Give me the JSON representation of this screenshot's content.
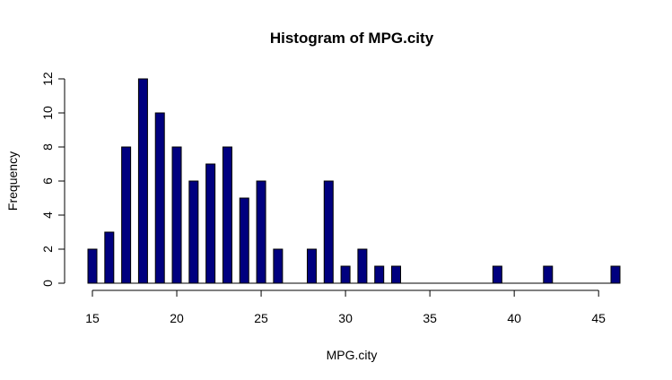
{
  "chart_data": {
    "type": "bar",
    "title": "Histogram of MPG.city",
    "xlabel": "MPG.city",
    "ylabel": "Frequency",
    "xlim": [
      15,
      46
    ],
    "ylim": [
      0,
      12
    ],
    "x_ticks": [
      "15",
      "20",
      "25",
      "30",
      "35",
      "40",
      "45"
    ],
    "y_ticks": [
      "0",
      "2",
      "4",
      "6",
      "8",
      "10",
      "12"
    ],
    "bar_color": "#00007f",
    "bars": [
      {
        "x": 15,
        "count": 2
      },
      {
        "x": 16,
        "count": 3
      },
      {
        "x": 17,
        "count": 8
      },
      {
        "x": 18,
        "count": 12
      },
      {
        "x": 19,
        "count": 10
      },
      {
        "x": 20,
        "count": 8
      },
      {
        "x": 21,
        "count": 6
      },
      {
        "x": 22,
        "count": 7
      },
      {
        "x": 23,
        "count": 8
      },
      {
        "x": 24,
        "count": 5
      },
      {
        "x": 25,
        "count": 6
      },
      {
        "x": 26,
        "count": 2
      },
      {
        "x": 28,
        "count": 2
      },
      {
        "x": 29,
        "count": 6
      },
      {
        "x": 30,
        "count": 1
      },
      {
        "x": 31,
        "count": 2
      },
      {
        "x": 32,
        "count": 1
      },
      {
        "x": 33,
        "count": 1
      },
      {
        "x": 39,
        "count": 1
      },
      {
        "x": 42,
        "count": 1
      },
      {
        "x": 46,
        "count": 1
      }
    ],
    "grid": false,
    "legend": "none"
  }
}
